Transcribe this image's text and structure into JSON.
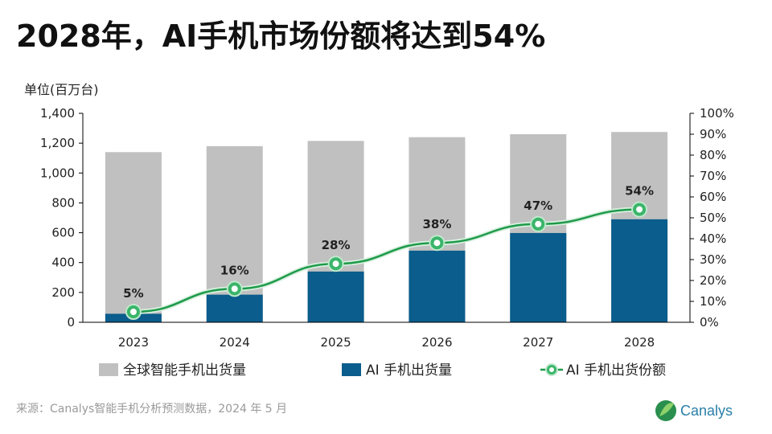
{
  "title": "2028年，AI手机市场份额将达到54%",
  "unit_label": "单位(百万台)",
  "source": "来源：Canalys智能手机分析预测数据，2024 年 5 月",
  "logo_text": "Canalys",
  "colors": {
    "total_bar": "#c0c0c0",
    "ai_bar": "#0a5d8c",
    "share_line": "#1e9a4a",
    "share_marker": "#3ab56a",
    "axis": "#000000"
  },
  "chart_data": {
    "type": "bar",
    "categories": [
      "2023",
      "2024",
      "2025",
      "2026",
      "2027",
      "2028"
    ],
    "series": [
      {
        "name": "全球智能手机出货量",
        "type": "bar",
        "axis": "left",
        "values": [
          1140,
          1180,
          1215,
          1240,
          1260,
          1275
        ]
      },
      {
        "name": "AI 手机出货量",
        "type": "bar",
        "axis": "left",
        "values": [
          57,
          185,
          340,
          480,
          598,
          690
        ]
      },
      {
        "name": "AI 手机出货份额",
        "type": "line",
        "axis": "right",
        "values": [
          5,
          16,
          28,
          38,
          47,
          54
        ],
        "unit": "%"
      }
    ],
    "data_labels": [
      "5%",
      "16%",
      "28%",
      "38%",
      "47%",
      "54%"
    ],
    "left_axis": {
      "ylim": [
        0,
        1400
      ],
      "ticks": [
        "0",
        "200",
        "400",
        "600",
        "800",
        "1,000",
        "1,200",
        "1,400"
      ]
    },
    "right_axis": {
      "ylim": [
        0,
        100
      ],
      "ticks": [
        "0%",
        "10%",
        "20%",
        "30%",
        "40%",
        "50%",
        "60%",
        "70%",
        "80%",
        "90%",
        "100%"
      ]
    },
    "legend": {
      "position": "bottom",
      "items": [
        "全球智能手机出货量",
        "AI 手机出货量",
        "AI 手机出货份额"
      ]
    },
    "grid": false
  }
}
